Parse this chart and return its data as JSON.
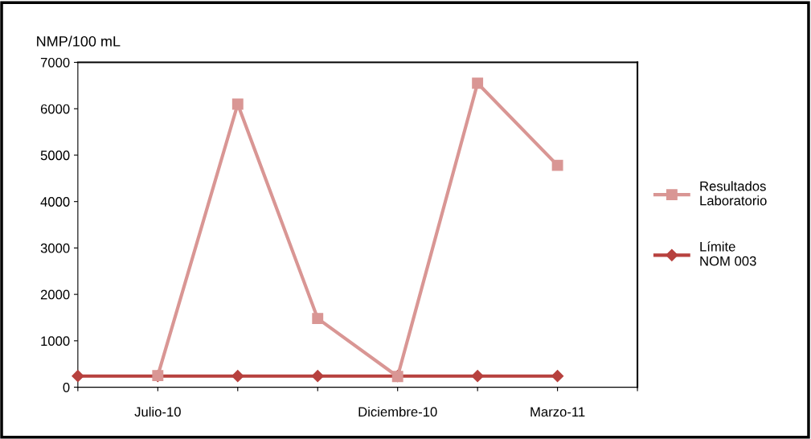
{
  "chart_data": {
    "type": "line",
    "ylabel": "NMP/100 mL",
    "categories": [
      null,
      "Julio-10",
      null,
      null,
      "Diciembre-10",
      null,
      "Marzo-11",
      null
    ],
    "series": [
      {
        "name": "Resultados Laboratorio",
        "color": "#d99694",
        "marker": "square",
        "values": [
          null,
          250,
          6100,
          1480,
          230,
          6550,
          4780,
          null
        ]
      },
      {
        "name": "Límite NOM 003",
        "color": "#b7413e",
        "marker": "diamond",
        "values": [
          240,
          240,
          240,
          240,
          240,
          240,
          240,
          null
        ]
      }
    ],
    "ylim": [
      0,
      7000
    ],
    "yticks": [
      0,
      1000,
      2000,
      3000,
      4000,
      5000,
      6000,
      7000
    ],
    "grid": false,
    "legend": "right",
    "line_style": "solid"
  }
}
